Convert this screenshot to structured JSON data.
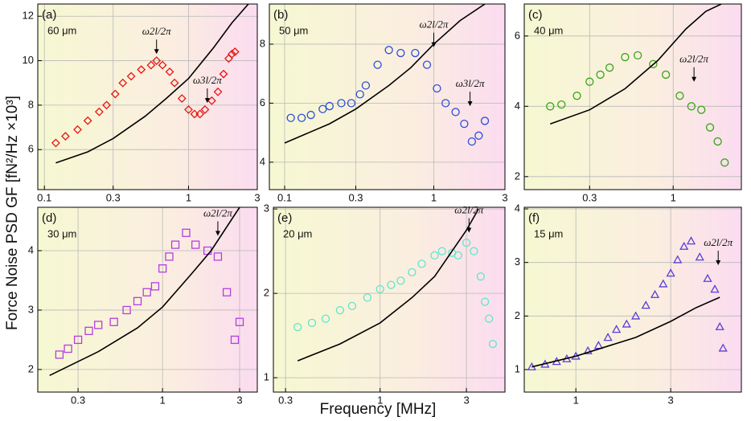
{
  "axis_labels": {
    "x": "Frequency [MHz]",
    "y": "Force Noise PSD GF [fN²/Hz ×10³]"
  },
  "chart_data": [
    {
      "type": "scatter",
      "label": "(a)",
      "distance": "60 μm",
      "log_x": true,
      "grid": true,
      "xlim": [
        0.09,
        3
      ],
      "xticks": [
        0.1,
        0.3,
        1,
        3
      ],
      "ylim": [
        4.2,
        12.55
      ],
      "yticks": [
        6,
        8,
        10,
        12
      ],
      "series": [
        {
          "marker": "diamond",
          "color": "#e8140f",
          "x": [
            0.12,
            0.14,
            0.17,
            0.2,
            0.24,
            0.27,
            0.31,
            0.35,
            0.4,
            0.47,
            0.55,
            0.6,
            0.66,
            0.74,
            0.8,
            0.9,
            1.0,
            1.1,
            1.2,
            1.3,
            1.45,
            1.6,
            1.75,
            1.9,
            2.0,
            2.1
          ],
          "values": [
            6.3,
            6.6,
            6.9,
            7.3,
            7.7,
            8.0,
            8.5,
            9.0,
            9.3,
            9.6,
            9.8,
            10.0,
            9.8,
            9.5,
            9.0,
            8.3,
            7.8,
            7.6,
            7.6,
            7.8,
            8.2,
            8.6,
            9.4,
            10.1,
            10.3,
            10.4
          ]
        },
        {
          "marker": "line",
          "color": "#000000",
          "x": [
            0.12,
            0.2,
            0.3,
            0.5,
            0.7,
            1,
            1.5,
            2,
            2.6
          ],
          "values": [
            5.4,
            5.9,
            6.5,
            7.5,
            8.3,
            9.2,
            10.6,
            11.7,
            12.55
          ]
        }
      ],
      "annotations": [
        {
          "text": "ω2l/2π",
          "x": 0.6,
          "y": 10.3
        },
        {
          "text": "ω3l/2π",
          "x": 1.35,
          "y": 8.1
        }
      ]
    },
    {
      "type": "scatter",
      "label": "(b)",
      "distance": "50 μm",
      "log_x": true,
      "grid": true,
      "xlim": [
        0.079,
        3
      ],
      "xticks": [
        0.1,
        0.3,
        1,
        3
      ],
      "ylim": [
        3.07,
        9.36
      ],
      "yticks": [
        4,
        6,
        8
      ],
      "series": [
        {
          "marker": "circle",
          "color": "#2a4fd6",
          "x": [
            0.11,
            0.13,
            0.15,
            0.18,
            0.2,
            0.24,
            0.28,
            0.32,
            0.35,
            0.42,
            0.5,
            0.6,
            0.75,
            0.9,
            1.05,
            1.2,
            1.4,
            1.6,
            1.8,
            2.0,
            2.2
          ],
          "values": [
            5.5,
            5.5,
            5.6,
            5.8,
            5.9,
            6.0,
            6.0,
            6.3,
            6.6,
            7.3,
            7.8,
            7.7,
            7.7,
            7.3,
            6.5,
            6.0,
            5.7,
            5.3,
            4.7,
            4.9,
            5.4
          ]
        },
        {
          "marker": "line",
          "color": "#000000",
          "x": [
            0.1,
            0.2,
            0.3,
            0.5,
            0.7,
            1,
            1.5,
            2.2
          ],
          "values": [
            4.65,
            5.3,
            5.8,
            6.6,
            7.2,
            8.0,
            8.8,
            9.36
          ]
        }
      ],
      "annotations": [
        {
          "text": "ω2l/2π",
          "x": 1.0,
          "y": 7.9
        },
        {
          "text": "ω3l/2π",
          "x": 1.75,
          "y": 5.9
        }
      ]
    },
    {
      "type": "scatter",
      "label": "(c)",
      "distance": "40 μm",
      "log_x": true,
      "grid": true,
      "xlim": [
        0.117,
        2.67
      ],
      "xticks": [
        0.3,
        1
      ],
      "ylim": [
        1.63,
        6.91
      ],
      "yticks": [
        2,
        4,
        6
      ],
      "series": [
        {
          "marker": "circle",
          "color": "#3aa51a",
          "x": [
            0.17,
            0.2,
            0.25,
            0.3,
            0.35,
            0.4,
            0.5,
            0.6,
            0.75,
            0.9,
            1.1,
            1.3,
            1.5,
            1.7,
            1.9,
            2.1
          ],
          "values": [
            4.0,
            4.05,
            4.3,
            4.7,
            4.9,
            5.1,
            5.4,
            5.45,
            5.2,
            4.9,
            4.3,
            4.0,
            3.9,
            3.4,
            3.0,
            2.4
          ]
        },
        {
          "marker": "line",
          "color": "#000000",
          "x": [
            0.17,
            0.3,
            0.5,
            0.8,
            1.2,
            1.6,
            2.0
          ],
          "values": [
            3.5,
            3.9,
            4.5,
            5.3,
            6.2,
            6.7,
            6.91
          ]
        }
      ],
      "annotations": [
        {
          "text": "ω2l/2π",
          "x": 1.35,
          "y": 4.7
        }
      ]
    },
    {
      "type": "scatter",
      "label": "(d)",
      "distance": "30 μm",
      "log_x": true,
      "grid": true,
      "xlim": [
        0.169,
        3.86
      ],
      "xticks": [
        0.3,
        1,
        3
      ],
      "ylim": [
        1.62,
        4.73
      ],
      "yticks": [
        2,
        3,
        4
      ],
      "series": [
        {
          "marker": "square",
          "color": "#b43ee0",
          "x": [
            0.23,
            0.26,
            0.3,
            0.35,
            0.4,
            0.5,
            0.6,
            0.7,
            0.8,
            0.9,
            1.0,
            1.1,
            1.2,
            1.4,
            1.6,
            1.9,
            2.2,
            2.5,
            2.8,
            3.0
          ],
          "values": [
            2.25,
            2.35,
            2.5,
            2.65,
            2.75,
            2.8,
            3.0,
            3.15,
            3.3,
            3.4,
            3.7,
            3.9,
            4.1,
            4.3,
            4.1,
            4.0,
            3.9,
            3.3,
            2.5,
            2.8
          ]
        },
        {
          "marker": "line",
          "color": "#000000",
          "x": [
            0.2,
            0.4,
            0.7,
            1,
            1.5,
            2,
            3
          ],
          "values": [
            1.9,
            2.3,
            2.7,
            3.05,
            3.6,
            4.0,
            4.73
          ]
        }
      ],
      "annotations": [
        {
          "text": "ω2l/2π",
          "x": 2.2,
          "y": 4.25
        }
      ]
    },
    {
      "type": "scatter",
      "label": "(e)",
      "distance": "20 μm",
      "log_x": true,
      "grid": true,
      "xlim": [
        0.257,
        4.9
      ],
      "xticks": [
        0.3,
        1,
        3
      ],
      "ylim": [
        0.83,
        3.02
      ],
      "yticks": [
        1,
        2,
        3
      ],
      "series": [
        {
          "marker": "circle",
          "color": "#5ee6cc",
          "x": [
            0.35,
            0.42,
            0.5,
            0.6,
            0.7,
            0.85,
            1.0,
            1.15,
            1.3,
            1.5,
            1.7,
            2.0,
            2.2,
            2.5,
            2.7,
            3.0,
            3.3,
            3.6,
            3.8,
            4.0,
            4.2
          ],
          "values": [
            1.6,
            1.65,
            1.7,
            1.8,
            1.85,
            1.95,
            2.05,
            2.1,
            2.15,
            2.25,
            2.35,
            2.45,
            2.5,
            2.48,
            2.45,
            2.6,
            2.5,
            2.2,
            1.9,
            1.7,
            1.4
          ]
        },
        {
          "marker": "line",
          "color": "#000000",
          "x": [
            0.35,
            0.6,
            1,
            1.5,
            2,
            3,
            3.5
          ],
          "values": [
            1.2,
            1.4,
            1.65,
            1.95,
            2.2,
            2.75,
            3.0
          ]
        }
      ],
      "annotations": [
        {
          "text": "ω2l/2π",
          "x": 3.1,
          "y": 2.72
        }
      ]
    },
    {
      "type": "scatter",
      "label": "(f)",
      "distance": "15 μm",
      "log_x": true,
      "grid": true,
      "xlim": [
        0.55,
        6.8
      ],
      "xticks": [
        1,
        3
      ],
      "ylim": [
        0.58,
        4.03
      ],
      "yticks": [
        1,
        2,
        3,
        4
      ],
      "series": [
        {
          "marker": "triangle",
          "color": "#5a3ed8",
          "x": [
            0.6,
            0.7,
            0.8,
            0.9,
            1.0,
            1.15,
            1.3,
            1.45,
            1.6,
            1.8,
            2.0,
            2.25,
            2.5,
            2.75,
            3.0,
            3.25,
            3.5,
            3.8,
            4.2,
            4.6,
            5.0,
            5.3,
            5.5
          ],
          "values": [
            1.05,
            1.1,
            1.15,
            1.2,
            1.25,
            1.35,
            1.45,
            1.6,
            1.75,
            1.85,
            2.0,
            2.2,
            2.4,
            2.6,
            2.8,
            3.05,
            3.3,
            3.4,
            3.1,
            2.7,
            2.5,
            1.8,
            1.4
          ]
        },
        {
          "marker": "line",
          "color": "#000000",
          "x": [
            0.6,
            1,
            2,
            3,
            4,
            5.3
          ],
          "values": [
            1.05,
            1.25,
            1.6,
            1.9,
            2.15,
            2.35
          ]
        }
      ],
      "annotations": [
        {
          "text": "ω2l/2π",
          "x": 5.2,
          "y": 2.95
        }
      ]
    }
  ]
}
